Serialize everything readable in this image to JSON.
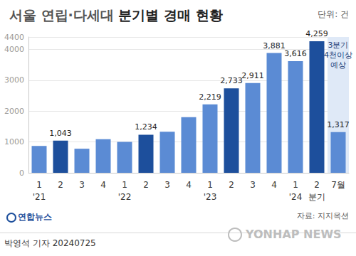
{
  "chart_data": {
    "type": "bar",
    "title": "서울 연립·다세대 분기별 경매 현황",
    "unit": "단위: 건",
    "source": "자료: 지지옥션",
    "publisher": "연합뉴스",
    "byline": "박영석 기자 20240725",
    "watermark": "YONHAP NEWS",
    "categories": [
      "1",
      "2",
      "3",
      "4",
      "1",
      "2",
      "3",
      "4",
      "1",
      "2",
      "3",
      "4",
      "1",
      "2",
      "7월"
    ],
    "period_labels": [
      "'21",
      null,
      null,
      null,
      "'22",
      null,
      null,
      null,
      "'23",
      null,
      null,
      null,
      "'24",
      "분기",
      null
    ],
    "values": [
      870,
      1043,
      780,
      1090,
      1000,
      1234,
      1330,
      1800,
      2219,
      2733,
      2911,
      3881,
      3616,
      4259,
      1317
    ],
    "value_labels": [
      null,
      "1,043",
      null,
      null,
      null,
      "1,234",
      null,
      null,
      "2,219",
      "2,733",
      "2,911",
      "3,881",
      "3,616",
      "4,259",
      "1,317"
    ],
    "colors": [
      "#5b8bd4",
      "#1d4f9c",
      "#5b8bd4",
      "#5b8bd4",
      "#5b8bd4",
      "#1d4f9c",
      "#5b8bd4",
      "#5b8bd4",
      "#5b8bd4",
      "#1d4f9c",
      "#5b8bd4",
      "#5b8bd4",
      "#5b8bd4",
      "#1d4f9c",
      "#5b8bd4"
    ],
    "data_labels": true,
    "ylim": [
      0,
      4400
    ],
    "yticks": [
      0,
      1000,
      2000,
      3000,
      4000
    ],
    "grid": true,
    "annotation": {
      "category": "7월",
      "text": [
        "3분기",
        "4천이상",
        "예상"
      ]
    }
  }
}
